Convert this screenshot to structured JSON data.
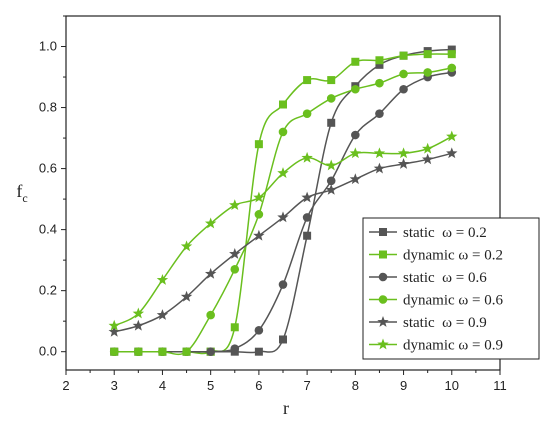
{
  "chart_data": {
    "type": "line",
    "xlabel": "r",
    "ylabel": "f",
    "ylabel_subscript": "c",
    "xlim": [
      2,
      11
    ],
    "ylim": [
      -0.06,
      1.1
    ],
    "xticks": [
      "2",
      "3",
      "4",
      "5",
      "6",
      "7",
      "8",
      "9",
      "10",
      "11"
    ],
    "yticks": [
      "0.0",
      "0.2",
      "0.4",
      "0.6",
      "0.8",
      "1.0"
    ],
    "grid": false,
    "legend_position": "bottom-right",
    "series": [
      {
        "name": "static  ω = 0.2",
        "color": "#555555",
        "marker": "square",
        "x": [
          3,
          3.5,
          4,
          4.5,
          5,
          5.5,
          6,
          6.5,
          7,
          7.5,
          8,
          8.5,
          9,
          9.5,
          10
        ],
        "y": [
          0.0,
          0.0,
          0.0,
          0.0,
          0.0,
          0.0,
          0.0,
          0.04,
          0.38,
          0.75,
          0.87,
          0.94,
          0.97,
          0.985,
          0.99
        ]
      },
      {
        "name": "dynamic ω = 0.2",
        "color": "#6abf1e",
        "marker": "square",
        "x": [
          3,
          3.5,
          4,
          4.5,
          5,
          5.5,
          6,
          6.5,
          7,
          7.5,
          8,
          8.5,
          9,
          9.5,
          10
        ],
        "y": [
          0.0,
          0.0,
          0.0,
          0.0,
          0.0,
          0.08,
          0.68,
          0.81,
          0.89,
          0.89,
          0.95,
          0.955,
          0.97,
          0.975,
          0.975
        ]
      },
      {
        "name": "static  ω = 0.6",
        "color": "#555555",
        "marker": "circle",
        "x": [
          3,
          3.5,
          4,
          4.5,
          5,
          5.5,
          6,
          6.5,
          7,
          7.5,
          8,
          8.5,
          9,
          9.5,
          10
        ],
        "y": [
          0.0,
          0.0,
          0.0,
          0.0,
          0.0,
          0.01,
          0.07,
          0.22,
          0.44,
          0.56,
          0.71,
          0.78,
          0.86,
          0.9,
          0.915
        ]
      },
      {
        "name": "dynamic ω = 0.6",
        "color": "#6abf1e",
        "marker": "circle",
        "x": [
          3,
          3.5,
          4,
          4.5,
          5,
          5.5,
          6,
          6.5,
          7,
          7.5,
          8,
          8.5,
          9,
          9.5,
          10
        ],
        "y": [
          0.0,
          0.0,
          0.0,
          0.0,
          0.12,
          0.27,
          0.45,
          0.72,
          0.78,
          0.83,
          0.86,
          0.88,
          0.91,
          0.915,
          0.93
        ]
      },
      {
        "name": "static  ω = 0.9",
        "color": "#555555",
        "marker": "star",
        "x": [
          3,
          3.5,
          4,
          4.5,
          5,
          5.5,
          6,
          6.5,
          7,
          7.5,
          8,
          8.5,
          9,
          9.5,
          10
        ],
        "y": [
          0.065,
          0.085,
          0.12,
          0.18,
          0.255,
          0.32,
          0.38,
          0.44,
          0.505,
          0.53,
          0.565,
          0.6,
          0.615,
          0.63,
          0.65
        ]
      },
      {
        "name": "dynamic ω = 0.9",
        "color": "#6abf1e",
        "marker": "star",
        "x": [
          3,
          3.5,
          4,
          4.5,
          5,
          5.5,
          6,
          6.5,
          7,
          7.5,
          8,
          8.5,
          9,
          9.5,
          10
        ],
        "y": [
          0.085,
          0.125,
          0.235,
          0.345,
          0.42,
          0.48,
          0.505,
          0.585,
          0.635,
          0.61,
          0.65,
          0.65,
          0.65,
          0.665,
          0.705
        ]
      }
    ]
  }
}
